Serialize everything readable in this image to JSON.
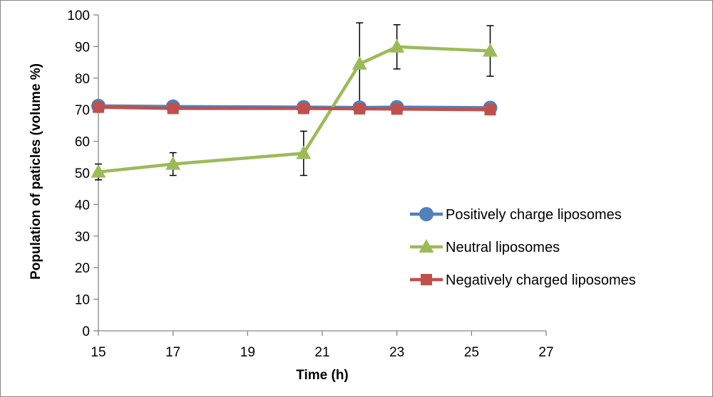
{
  "chart_data": {
    "type": "line",
    "title": "",
    "xlabel": "Time (h)",
    "ylabel": "Population of paticles (volume %)",
    "xlim": [
      15,
      27
    ],
    "ylim": [
      0,
      100
    ],
    "x_ticks": [
      15,
      17,
      19,
      21,
      23,
      25,
      27
    ],
    "y_ticks": [
      0,
      10,
      20,
      30,
      40,
      50,
      60,
      70,
      80,
      90,
      100
    ],
    "grid": false,
    "legend_position": "right",
    "series": [
      {
        "name": "Positively charge liposomes",
        "color": "#4F81BD",
        "marker": "circle",
        "x": [
          15,
          17,
          20.5,
          22,
          23,
          25.5
        ],
        "y": [
          71.2,
          71.0,
          70.8,
          70.7,
          70.8,
          70.6
        ]
      },
      {
        "name": "Neutral liposomes",
        "color": "#9BBB59",
        "marker": "triangle",
        "x": [
          15,
          17,
          20.5,
          22,
          23,
          25.5
        ],
        "y": [
          50.3,
          52.8,
          56.2,
          84.5,
          89.9,
          88.6
        ],
        "error": [
          2.5,
          3.6,
          7.0,
          13.0,
          7.0,
          8.0
        ]
      },
      {
        "name": "Negatively charged liposomes",
        "color": "#C0504D",
        "marker": "square",
        "x": [
          15,
          17,
          20.5,
          22,
          23,
          25.5
        ],
        "y": [
          70.8,
          70.4,
          70.4,
          70.3,
          70.2,
          70.0
        ]
      }
    ]
  }
}
